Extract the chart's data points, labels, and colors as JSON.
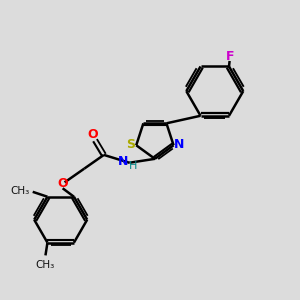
{
  "bg_color": "#dcdcdc",
  "bond_color": "#000000",
  "bond_width": 1.8,
  "figsize": [
    3.0,
    3.0
  ],
  "dpi": 100,
  "S_color": "#aaaa00",
  "N_color": "#0000ff",
  "O_color": "#ff0000",
  "F_color": "#cc00cc",
  "H_color": "#008888",
  "text_color": "#111111",
  "xlim": [
    -0.6,
    0.9
  ],
  "ylim": [
    -0.15,
    1.15
  ]
}
